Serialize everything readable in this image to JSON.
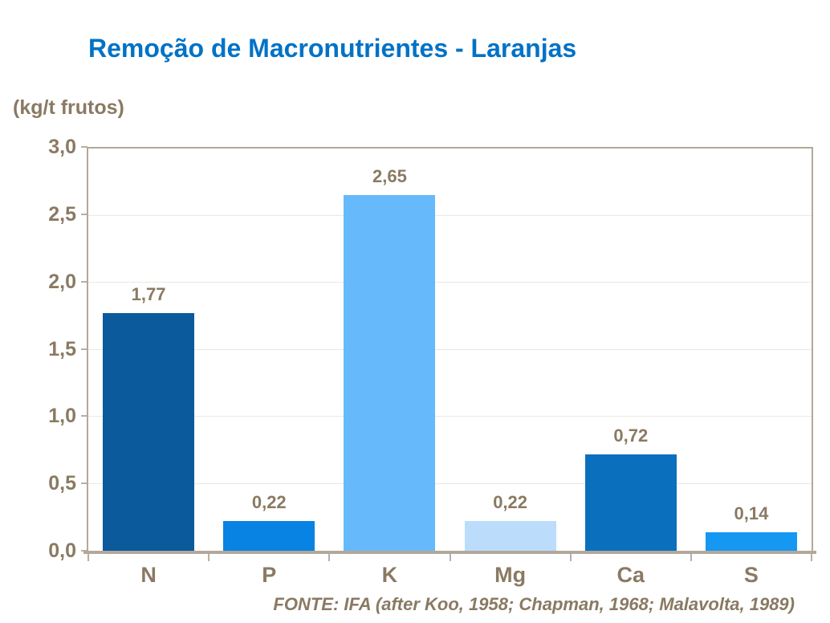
{
  "colors": {
    "title": "#0072C6",
    "text": "#8A7A63",
    "frame": "#B3A89B",
    "grid": "#ECE8E1",
    "background": "#FFFFFF"
  },
  "chart_data": {
    "type": "bar",
    "title": "Remoção de Macronutrientes - Laranjas",
    "ylabel": "(kg/t frutos)",
    "xlabel": "",
    "categories": [
      "N",
      "P",
      "K",
      "Mg",
      "Ca",
      "S"
    ],
    "values": [
      1.77,
      0.22,
      2.65,
      0.22,
      0.72,
      0.14
    ],
    "value_labels": [
      "1,77",
      "0,22",
      "2,65",
      "0,22",
      "0,72",
      "0,14"
    ],
    "bar_colors": [
      "#0A5A9C",
      "#0883E3",
      "#66B9FA",
      "#BBDDFB",
      "#0A70BE",
      "#1697F2"
    ],
    "ylim": [
      0,
      3.0
    ],
    "yticks": [
      0,
      0.5,
      1.0,
      1.5,
      2.0,
      2.5,
      3.0
    ],
    "ytick_labels": [
      "0,0",
      "0,5",
      "1,0",
      "1,5",
      "2,0",
      "2,5",
      "3,0"
    ],
    "grid": true,
    "legend": false,
    "source": "FONTE: IFA (after Koo, 1958; Chapman, 1968; Malavolta, 1989)"
  }
}
